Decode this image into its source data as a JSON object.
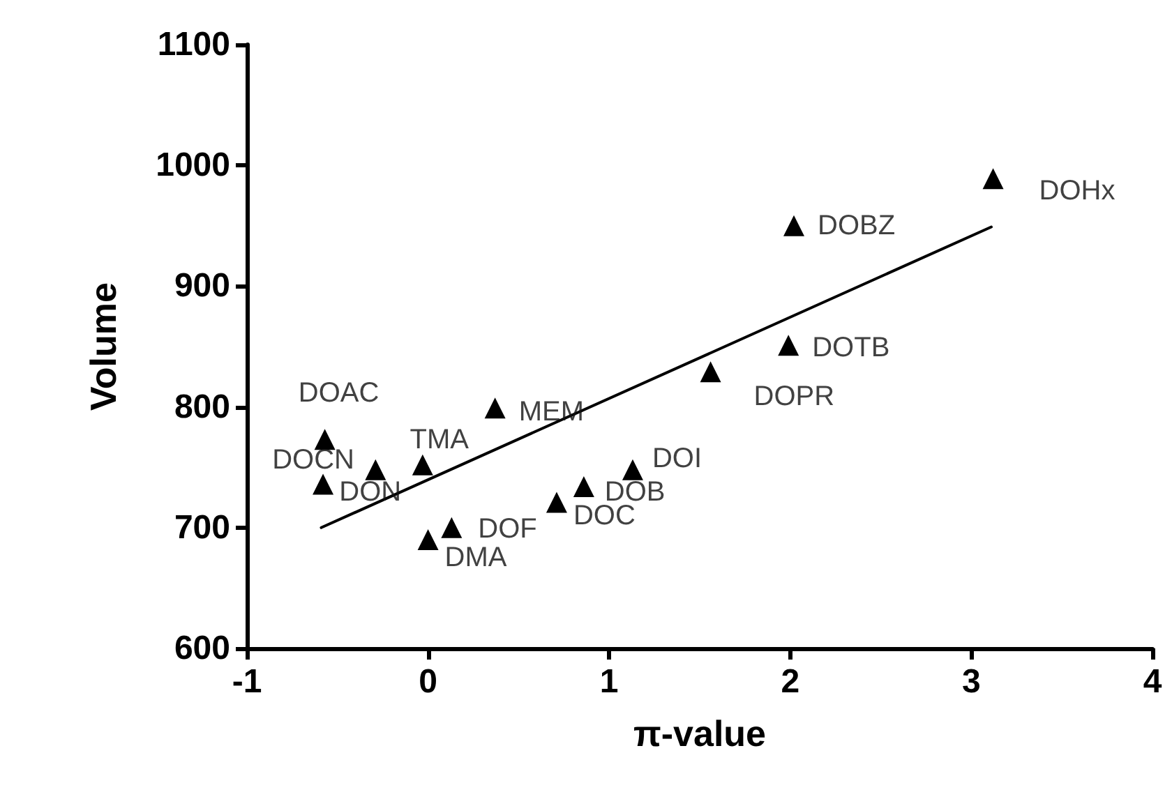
{
  "chart_data": {
    "type": "scatter",
    "xlabel": "π-value",
    "ylabel": "Volume",
    "xlim": [
      -1,
      4
    ],
    "xticks": [
      -1,
      0,
      1,
      2,
      3,
      4
    ],
    "ylim": [
      600,
      1100
    ],
    "yticks": [
      600,
      700,
      800,
      900,
      1000,
      1100
    ],
    "grid": false,
    "marker": "triangle",
    "series": [
      {
        "color": "#000000",
        "x": [
          -0.57,
          -0.58,
          -0.29,
          -0.03,
          0.37,
          0.0,
          0.13,
          0.71,
          0.86,
          1.13,
          1.56,
          1.99,
          2.02,
          3.12
        ],
        "values": [
          773,
          736,
          748,
          752,
          799,
          690,
          700,
          721,
          734,
          748,
          829,
          851,
          950,
          989
        ]
      },
      {
        "type": "line",
        "color": "#000000",
        "marker": "none",
        "x": [
          -0.59,
          3.11
        ],
        "values": [
          700,
          949
        ]
      }
    ],
    "annotations": [
      {
        "text": "DOAC",
        "x": -0.57,
        "y": 773
      },
      {
        "text": "DOCN",
        "x": -0.58,
        "y": 736
      },
      {
        "text": "DON",
        "x": -0.29,
        "y": 748
      },
      {
        "text": "TMA",
        "x": -0.03,
        "y": 752
      },
      {
        "text": "MEM",
        "x": 0.37,
        "y": 799
      },
      {
        "text": "DMA",
        "x": 0.0,
        "y": 690
      },
      {
        "text": "DOF",
        "x": 0.13,
        "y": 700
      },
      {
        "text": "DOC",
        "x": 0.71,
        "y": 721
      },
      {
        "text": "DOB",
        "x": 0.86,
        "y": 734
      },
      {
        "text": "DOI",
        "x": 1.13,
        "y": 748
      },
      {
        "text": "DOPR",
        "x": 1.56,
        "y": 829
      },
      {
        "text": "DOTB",
        "x": 1.99,
        "y": 851
      },
      {
        "text": "DOBZ",
        "x": 2.02,
        "y": 950
      },
      {
        "text": "DOHx",
        "x": 3.12,
        "y": 989
      }
    ]
  }
}
